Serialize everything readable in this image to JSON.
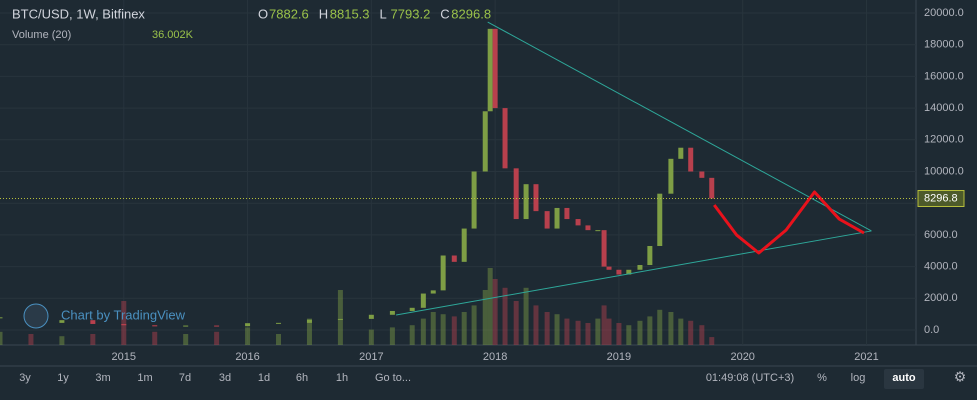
{
  "chart_data": {
    "type": "candlestick",
    "title": "BTC/USD, 1W, Bitfinex",
    "ohlc": [
      {
        "label": "O",
        "value": 7882.6
      },
      {
        "label": "H",
        "value": 8815.3
      },
      {
        "label": "L",
        "value": 7793.2
      },
      {
        "label": "C",
        "value": 8296.8
      }
    ],
    "volume_indicator": "Volume (20)",
    "volume_label": "36.002K",
    "watermark": "Chart by TradingView",
    "x": [
      2014.0,
      2014.25,
      2014.5,
      2014.75,
      2015.0,
      2015.25,
      2015.5,
      2015.75,
      2016.0,
      2016.25,
      2016.5,
      2016.75,
      2017.0,
      2017.17,
      2017.33,
      2017.42,
      2017.5,
      2017.58,
      2017.67,
      2017.75,
      2017.83,
      2017.92,
      2017.96,
      2018.0,
      2018.08,
      2018.17,
      2018.25,
      2018.33,
      2018.42,
      2018.5,
      2018.58,
      2018.67,
      2018.75,
      2018.83,
      2018.88,
      2018.92,
      2019.0,
      2019.08,
      2019.17,
      2019.25,
      2019.33,
      2019.42,
      2019.5,
      2019.58,
      2019.67,
      2019.75
    ],
    "values": [
      800,
      450,
      620,
      380,
      300,
      230,
      280,
      240,
      430,
      450,
      650,
      700,
      960,
      1200,
      1400,
      2300,
      2500,
      4700,
      4300,
      6400,
      10000,
      13800,
      19000,
      14000,
      10200,
      7000,
      9200,
      7500,
      6400,
      7700,
      7000,
      6600,
      6300,
      6300,
      4000,
      3800,
      3500,
      3800,
      4100,
      5300,
      8600,
      10800,
      11500,
      10000,
      9600,
      8296.8
    ],
    "volume": [
      60,
      50,
      40,
      50,
      200,
      60,
      50,
      60,
      80,
      50,
      120,
      250,
      70,
      80,
      90,
      120,
      150,
      140,
      130,
      150,
      180,
      250,
      350,
      300,
      260,
      200,
      260,
      180,
      150,
      140,
      120,
      110,
      100,
      120,
      180,
      120,
      100,
      90,
      110,
      130,
      160,
      150,
      120,
      110,
      90,
      36.002
    ],
    "projection": {
      "x": [
        2019.77,
        2019.95,
        2020.13,
        2020.35,
        2020.58,
        2020.78,
        2020.98
      ],
      "values": [
        7886,
        6000,
        4858,
        6300,
        8707,
        7000,
        6120
      ]
    },
    "trendlines": [
      {
        "x": [
          2017.94,
          2021.04
        ],
        "values": [
          19430,
          6250
        ]
      },
      {
        "x": [
          2017.2,
          2021.04
        ],
        "values": [
          946,
          6250
        ]
      }
    ],
    "xlim": [
      2014,
      2021.4
    ],
    "xticks": [
      2015,
      2016,
      2017,
      2018,
      2019,
      2020,
      2021
    ],
    "ylim": [
      0,
      20000
    ],
    "yticks": [
      {
        "value": 0,
        "label": "0.0"
      },
      {
        "value": 2000,
        "label": "2000.0"
      },
      {
        "value": 4000,
        "label": "4000.0"
      },
      {
        "value": 6000,
        "label": "6000.0"
      },
      {
        "value": 8000,
        "label": "8000.0"
      },
      {
        "value": 10000,
        "label": "10000.0"
      },
      {
        "value": 12000,
        "label": "12000.0"
      },
      {
        "value": 14000,
        "label": "14000.0"
      },
      {
        "value": 16000,
        "label": "16000.0"
      },
      {
        "value": 18000,
        "label": "18000.0"
      },
      {
        "value": 20000,
        "label": "20000.0"
      }
    ],
    "grid": true,
    "up_color": "#7e9e45",
    "down_color": "#b8404d",
    "trend_color": "#2ea89a",
    "projection_color": "#e8121c"
  },
  "toolbar": {
    "ranges": [
      "3y",
      "1y",
      "3m",
      "1m",
      "7d",
      "3d",
      "1d",
      "6h",
      "1h",
      "Go to..."
    ],
    "clock": "01:49:08 (UTC+3)",
    "right": [
      "%",
      "log",
      "auto"
    ]
  }
}
